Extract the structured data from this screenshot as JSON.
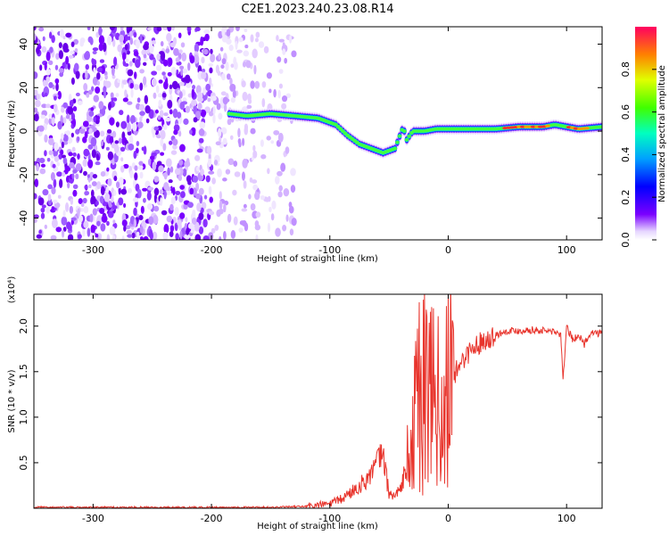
{
  "title": "C2E1.2023.240.23.08.R14",
  "chart_data": [
    {
      "type": "heatmap",
      "xlabel": "Height of straight line (km)",
      "ylabel": "Frequency (Hz)",
      "xlim": [
        -350,
        130
      ],
      "ylim": [
        -50,
        48
      ],
      "xticks": [
        -300,
        -200,
        -100,
        0,
        100
      ],
      "yticks": [
        -40,
        -20,
        0,
        20,
        40
      ],
      "colorbar": {
        "label": "Normalized spectral amplitude",
        "range": [
          0.0,
          1.0
        ],
        "ticks": [
          "0.0",
          "0.2",
          "0.4",
          "0.6",
          "0.8"
        ]
      },
      "ridge": {
        "x": [
          -185,
          -170,
          -150,
          -130,
          -110,
          -95,
          -85,
          -75,
          -65,
          -55,
          -45,
          -38,
          -35,
          -30,
          -20,
          -10,
          0,
          20,
          40,
          60,
          80,
          90,
          100,
          110,
          130
        ],
        "y": [
          8,
          7,
          8,
          7,
          6,
          3,
          -2,
          -6,
          -8,
          -10,
          -8,
          2,
          -4,
          0,
          0,
          1,
          1,
          1,
          1,
          2,
          2,
          3,
          2,
          1,
          2
        ]
      },
      "noise_region": {
        "x": [
          -350,
          -130
        ],
        "y": [
          -50,
          48
        ]
      }
    },
    {
      "type": "line",
      "xlabel": "Height of straight line (km)",
      "ylabel": "SNR (10 * v/v)",
      "y_multiplier": "(x10⁴)",
      "xlim": [
        -350,
        130
      ],
      "ylim": [
        0,
        2.35
      ],
      "xticks": [
        -300,
        -200,
        -100,
        0,
        100
      ],
      "yticks": [
        "0.5",
        "1.0",
        "1.5",
        "2.0"
      ],
      "series": [
        {
          "color": "#e8342c",
          "x": [
            -350,
            -300,
            -200,
            -150,
            -120,
            -100,
            -90,
            -80,
            -70,
            -62,
            -58,
            -55,
            -50,
            -45,
            -40,
            -35,
            -30,
            -25,
            -20,
            -15,
            -10,
            -5,
            0,
            5,
            10,
            20,
            30,
            40,
            50,
            60,
            70,
            80,
            90,
            95,
            97,
            100,
            105,
            110,
            115,
            120,
            130
          ],
          "y": [
            0.01,
            0.01,
            0.01,
            0.01,
            0.02,
            0.05,
            0.1,
            0.2,
            0.3,
            0.45,
            0.55,
            0.6,
            0.15,
            0.15,
            0.2,
            0.5,
            0.7,
            1.3,
            1.1,
            1.4,
            1.2,
            0.9,
            1.3,
            1.45,
            1.6,
            1.75,
            1.85,
            1.9,
            1.95,
            1.95,
            1.96,
            1.95,
            1.94,
            1.9,
            1.4,
            2.0,
            1.85,
            1.9,
            1.8,
            1.93,
            1.92
          ]
        }
      ]
    }
  ]
}
